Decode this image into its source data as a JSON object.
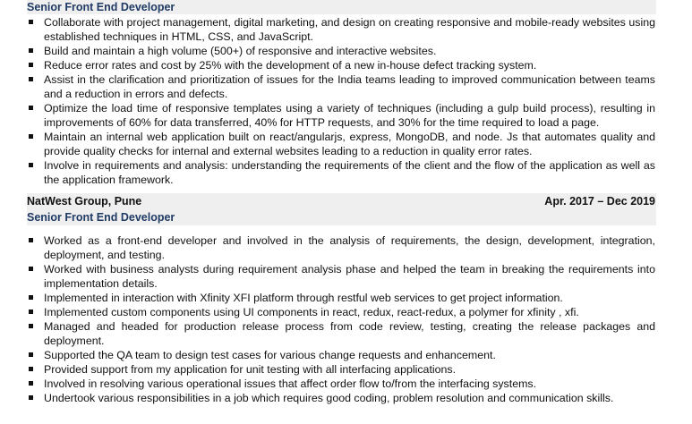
{
  "job1": {
    "title": "Senior Front End Developer",
    "bullets": [
      "Collaborate with project management, digital marketing, and design on creating responsive and mobile-ready websites using established techniques in HTML, CSS, and JavaScript.",
      "Build and maintain a high volume (500+) of responsive and interactive websites.",
      "Reduce error rates and cost by 25% with the development of a new in-house defect tracking system.",
      "Assist in the clarification and prioritization of issues for the India teams leading to improved communication between teams and a reduction in errors and defects.",
      "Optimize the load time of responsive templates using a variety of techniques (including a gulp build process), resulting in improvements of 60% for data transferred, 40% for HTTP requests, and 30% for the time required to load a page.",
      "Maintain an internal web application built on react/angularjs, express, MongoDB, and node. Js that automates quality and provide quality checks for internal and external websites leading to a reduction in quality error rates.",
      "Involve in requirements and analysis: understanding the requirements of the client and the flow of the application as well as the application framework."
    ]
  },
  "job2": {
    "company": "NatWest Group, Pune",
    "dates": "Apr. 2017 – Dec 2019",
    "title": "Senior Front End Developer",
    "bullets": [
      "Worked as a front-end developer and involved in the analysis of requirements, the design, development, integration, deployment, and testing.",
      "Worked with business analysts during requirement analysis phase and helped the team in breaking the requirements into implementation details.",
      "Implemented in interaction with Xfinity XFI platform through restful web services to get project information.",
      "Implemented custom components using UI components in react, redux, react-redux, a polymer for xfinity , xfi.",
      "Managed and headed for production release process from code review, testing, creating the release packages and deployment.",
      "Supported the QA team to design test cases for various change requests and enhancement.",
      "Provided support from my application for unit testing with all interfacing applications.",
      "Involved in resolving various operational issues that affect order flow to/from the interfacing systems.",
      "Undertook various responsibilities in a job which requires good coding, problem resolution and communication skills."
    ]
  }
}
